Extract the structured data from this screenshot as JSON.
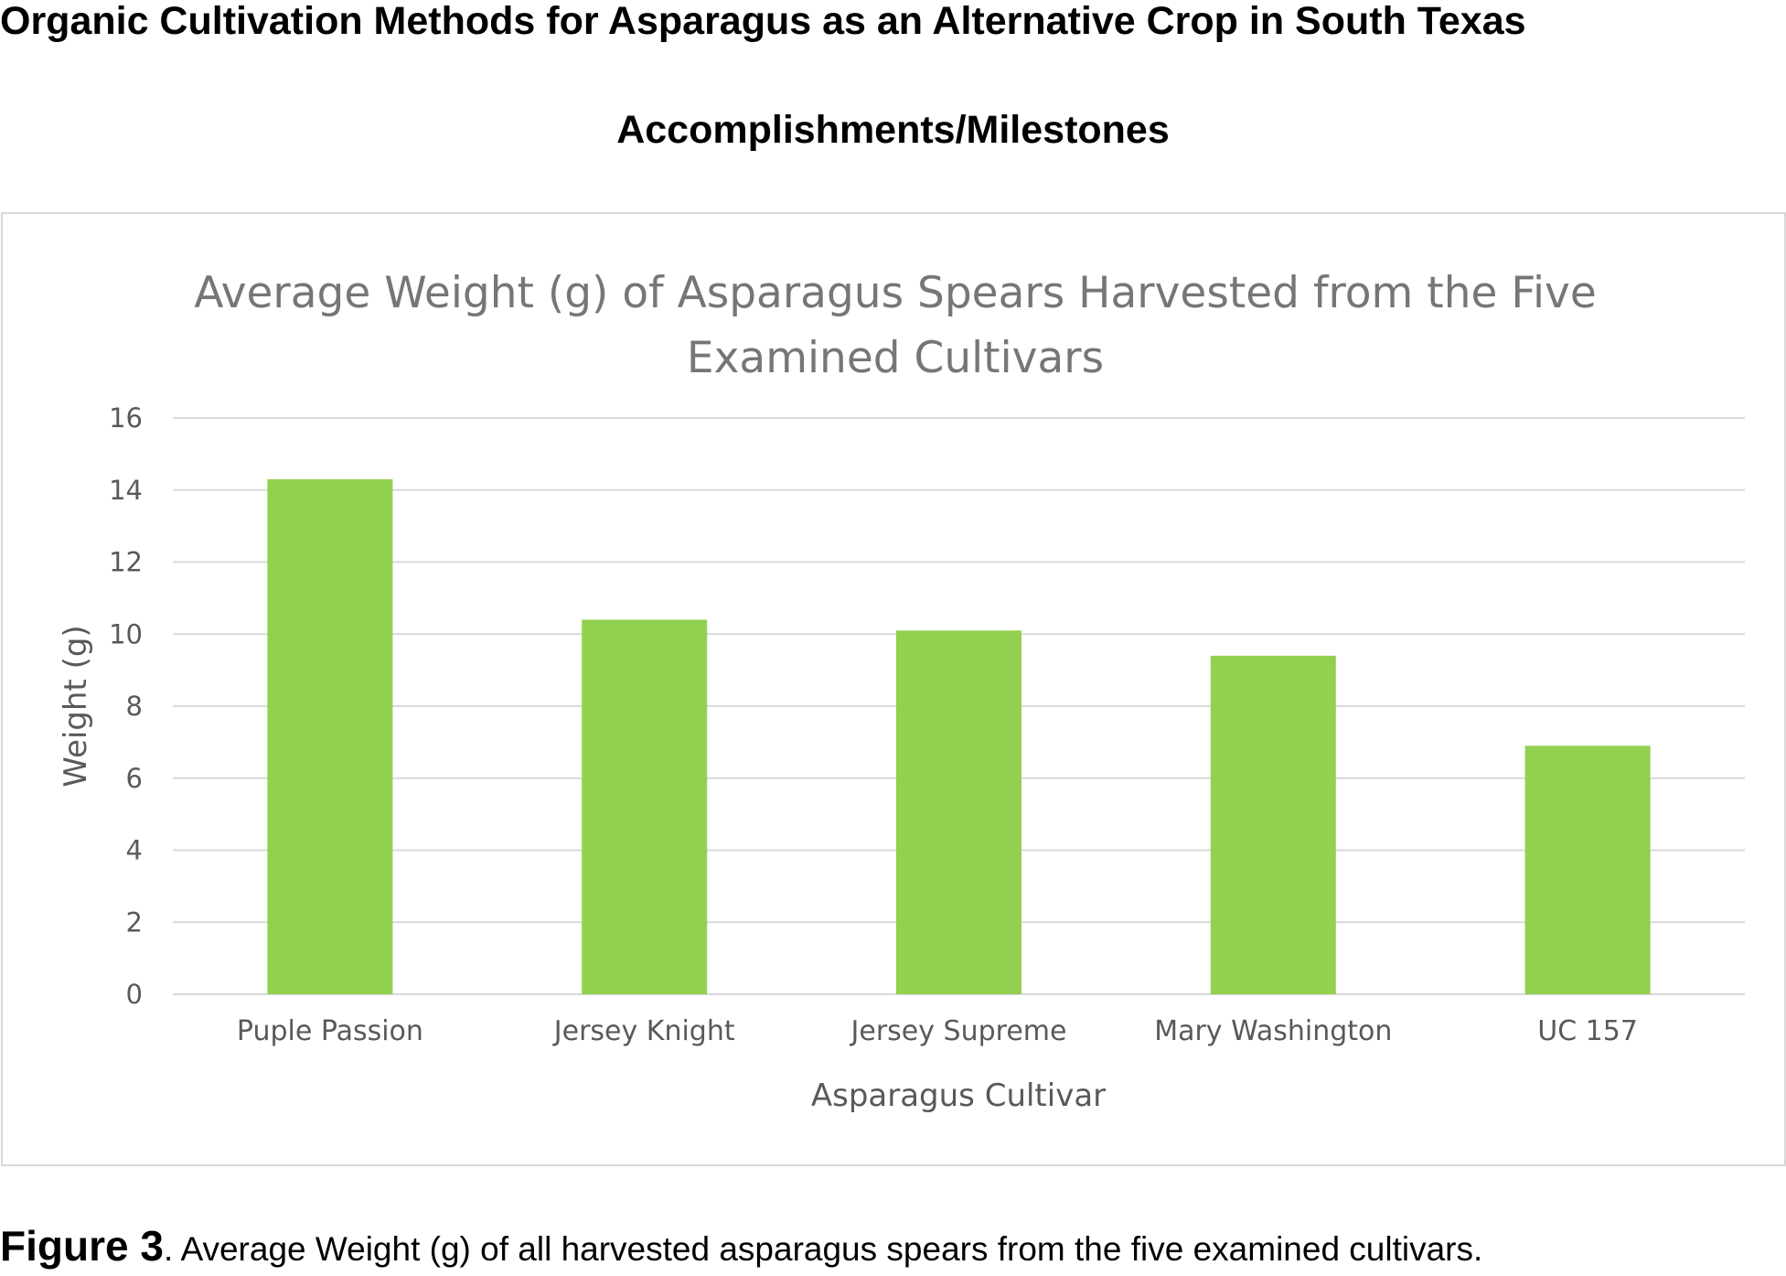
{
  "document": {
    "title": "Organic Cultivation Methods for Asparagus as an Alternative Crop in South Texas",
    "section_heading": "Accomplishments/Milestones"
  },
  "chart_data": {
    "type": "bar",
    "title_lines": [
      "Average Weight (g) of Asparagus Spears Harvested from the Five",
      "Examined Cultivars"
    ],
    "categories": [
      "Puple Passion",
      "Jersey Knight",
      "Jersey Supreme",
      "Mary Washington",
      "UC 157"
    ],
    "values": [
      14.3,
      10.4,
      10.1,
      9.4,
      6.9
    ],
    "xlabel": "Asparagus Cultivar",
    "ylabel": "Weight (g)",
    "ylim": [
      0,
      16
    ],
    "yticks": [
      "0",
      "2",
      "4",
      "6",
      "8",
      "10",
      "12",
      "14",
      "16"
    ],
    "grid": true,
    "legend": "none",
    "bar_color": "#92d050",
    "gridline_color": "#d9d9d9"
  },
  "caption": {
    "label": "Figure 3",
    "text": ". Average Weight (g) of all harvested asparagus spears from the five examined cultivars."
  }
}
